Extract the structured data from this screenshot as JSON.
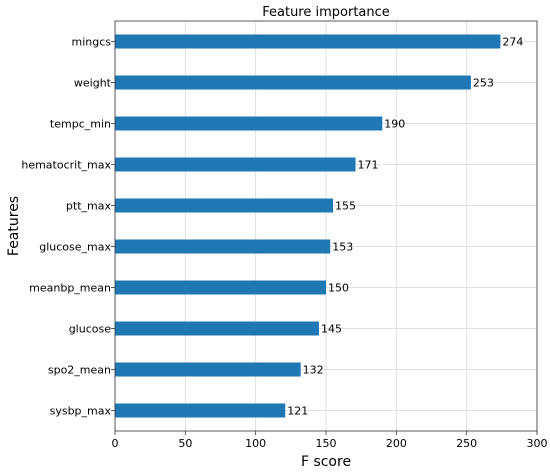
{
  "chart_data": {
    "type": "bar",
    "orientation": "horizontal",
    "title": "Feature importance",
    "xlabel": "F score",
    "ylabel": "Features",
    "xlim": [
      0,
      300
    ],
    "x_ticks": [
      0,
      50,
      100,
      150,
      200,
      250,
      300
    ],
    "grid": true,
    "color": "#1f77b4",
    "categories": [
      "mingcs",
      "weight",
      "tempc_min",
      "hematocrit_max",
      "ptt_max",
      "glucose_max",
      "meanbp_mean",
      "glucose",
      "spo2_mean",
      "sysbp_max"
    ],
    "values": [
      274,
      253,
      190,
      171,
      155,
      153,
      150,
      145,
      132,
      121
    ]
  }
}
